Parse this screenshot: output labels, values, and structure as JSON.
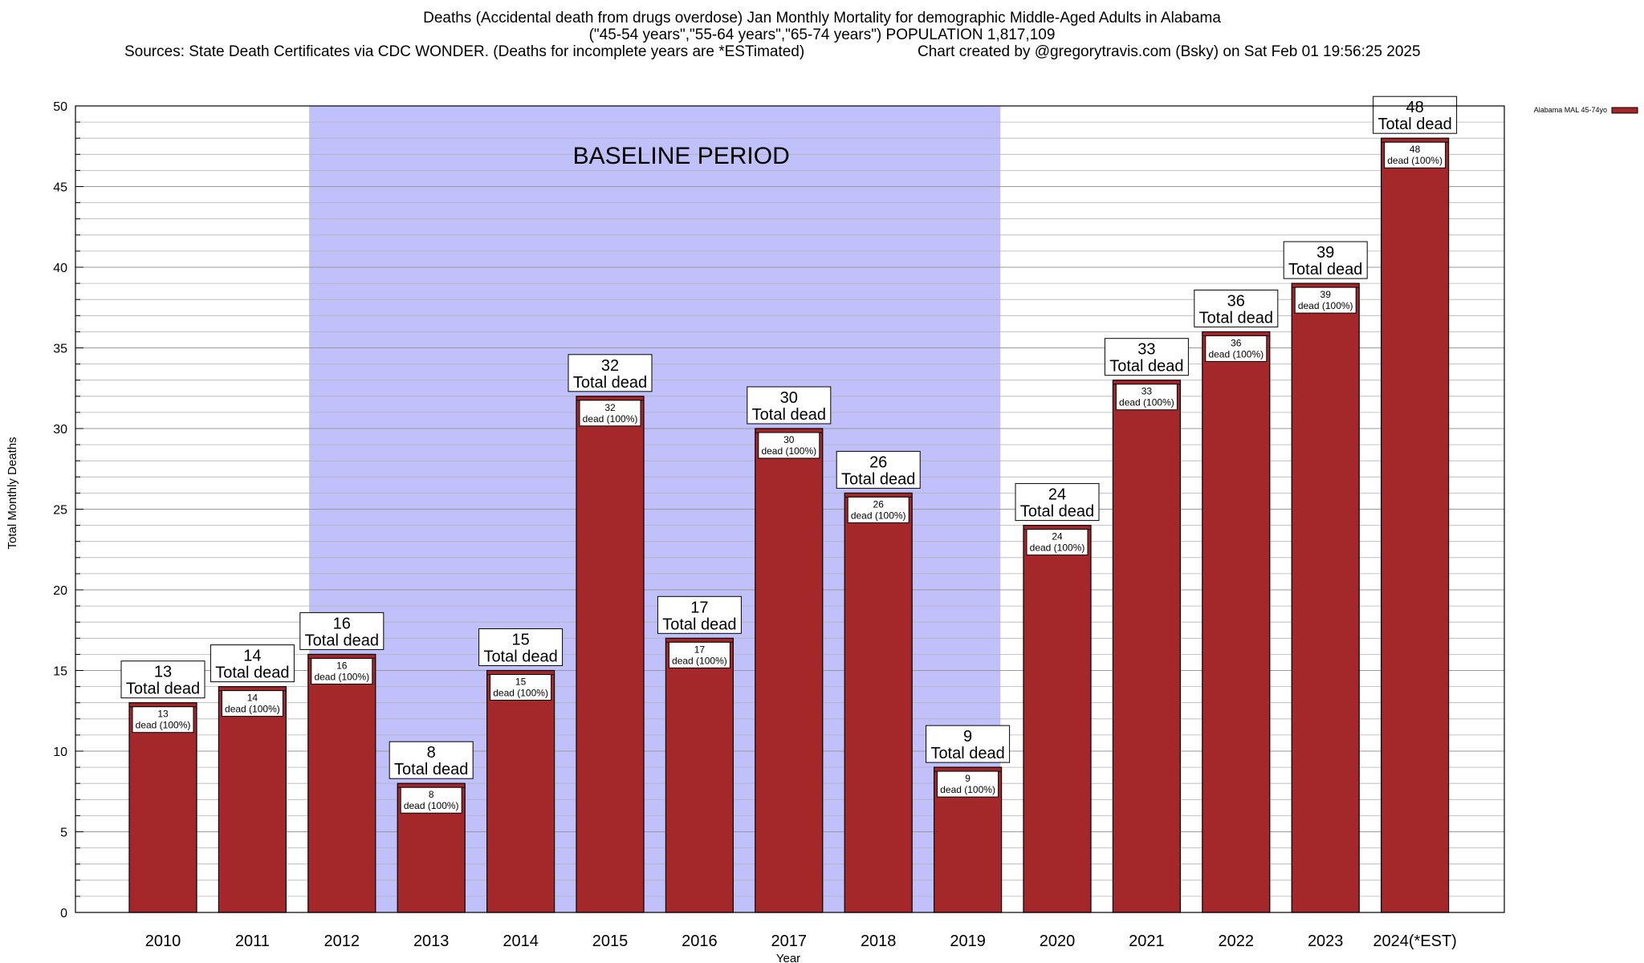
{
  "title": "Deaths (Accidental death from drugs overdose) Jan Monthly Mortality for demographic Middle-Aged Adults in Alabama",
  "subtitle": "(\"45-54 years\",\"55-64 years\",\"65-74 years\") POPULATION 1,817,109",
  "sources": "Sources: State Death Certificates via CDC WONDER. (Deaths for incomplete years are *ESTimated)",
  "credit": "Chart created by @gregorytravis.com (Bsky) on Sat Feb 01 19:56:25 2025",
  "colors": {
    "bar": "#a4282a",
    "baseline_shade": "#c0c0fa",
    "grid": "#b3b3b3"
  },
  "chart_data": {
    "type": "bar",
    "title": "Deaths (Accidental death from drugs overdose) Jan Monthly Mortality for demographic Middle-Aged Adults in Alabama",
    "xlabel": "Year",
    "ylabel": "Total Monthly Deaths",
    "ylim": [
      0,
      50
    ],
    "yticks": [
      0,
      5,
      10,
      15,
      20,
      25,
      30,
      35,
      40,
      45,
      50
    ],
    "grid": true,
    "legend_position": "top-right",
    "categories": [
      "2010",
      "2011",
      "2012",
      "2013",
      "2014",
      "2015",
      "2016",
      "2017",
      "2018",
      "2019",
      "2020",
      "2021",
      "2022",
      "2023",
      "2024(*EST)"
    ],
    "series": [
      {
        "name": "Alabama MAL 45-74yo",
        "values": [
          13,
          14,
          16,
          8,
          15,
          32,
          17,
          30,
          26,
          9,
          24,
          33,
          36,
          39,
          48
        ]
      }
    ],
    "total_label_text": "Total dead",
    "inner_label_text": "dead (100%)",
    "annotation": {
      "text": "BASELINE PERIOD",
      "from": "2012",
      "to": "2019"
    }
  }
}
